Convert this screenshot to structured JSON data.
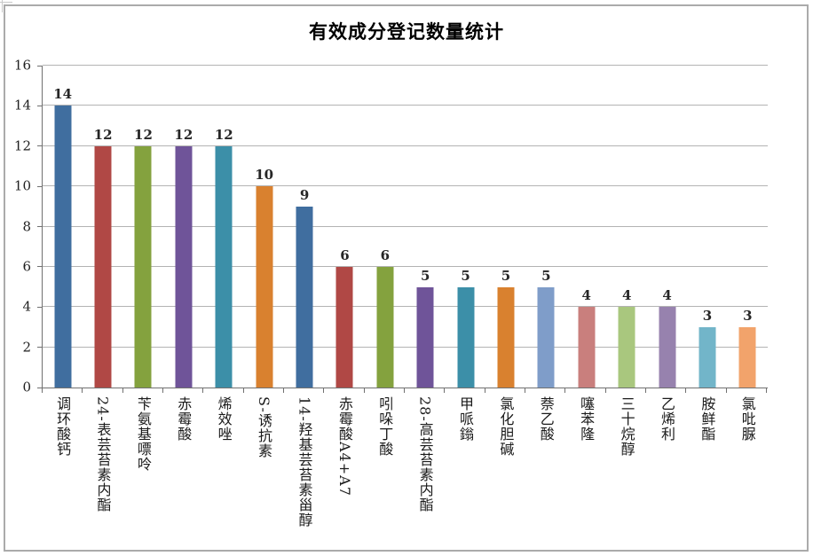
{
  "chart_data": {
    "type": "bar",
    "title": "有效成分登记数量统计",
    "categories": [
      "调环酸钙",
      "24-表芸苔素内酯",
      "苄氨基嘌呤",
      "赤霉酸",
      "烯效唑",
      "S-诱抗素",
      "14-羟基芸苔素甾醇",
      "赤霉酸A4+A7",
      "吲哚丁酸",
      "28-高芸苔素内酯",
      "甲哌鎓",
      "氯化胆碱",
      "萘乙酸",
      "噻苯隆",
      "三十烷醇",
      "乙烯利",
      "胺鲜酯",
      "氯吡脲"
    ],
    "values": [
      14,
      12,
      12,
      12,
      12,
      10,
      9,
      6,
      6,
      5,
      5,
      5,
      5,
      4,
      4,
      4,
      3,
      3
    ],
    "bar_colors": [
      "#406E9F",
      "#B04845",
      "#84A23E",
      "#6F5499",
      "#3C8FA8",
      "#D9812F",
      "#406E9F",
      "#B04845",
      "#84A23E",
      "#6F5499",
      "#3C8FA8",
      "#D9812F",
      "#7F9DC9",
      "#C97F7D",
      "#A9C77E",
      "#9782AE",
      "#72B5C9",
      "#F2A36B"
    ],
    "xlabel": "",
    "ylabel": "",
    "ylim": [
      0,
      16
    ],
    "yticks": [
      0,
      2,
      4,
      6,
      8,
      10,
      12,
      14,
      16
    ],
    "grid": true,
    "legend": "none",
    "data_labels": true,
    "colors": {
      "gridline": "#b3b3b3",
      "axis_line": "#707070",
      "label_text": "#262626",
      "chart_border": "#ababab"
    }
  }
}
